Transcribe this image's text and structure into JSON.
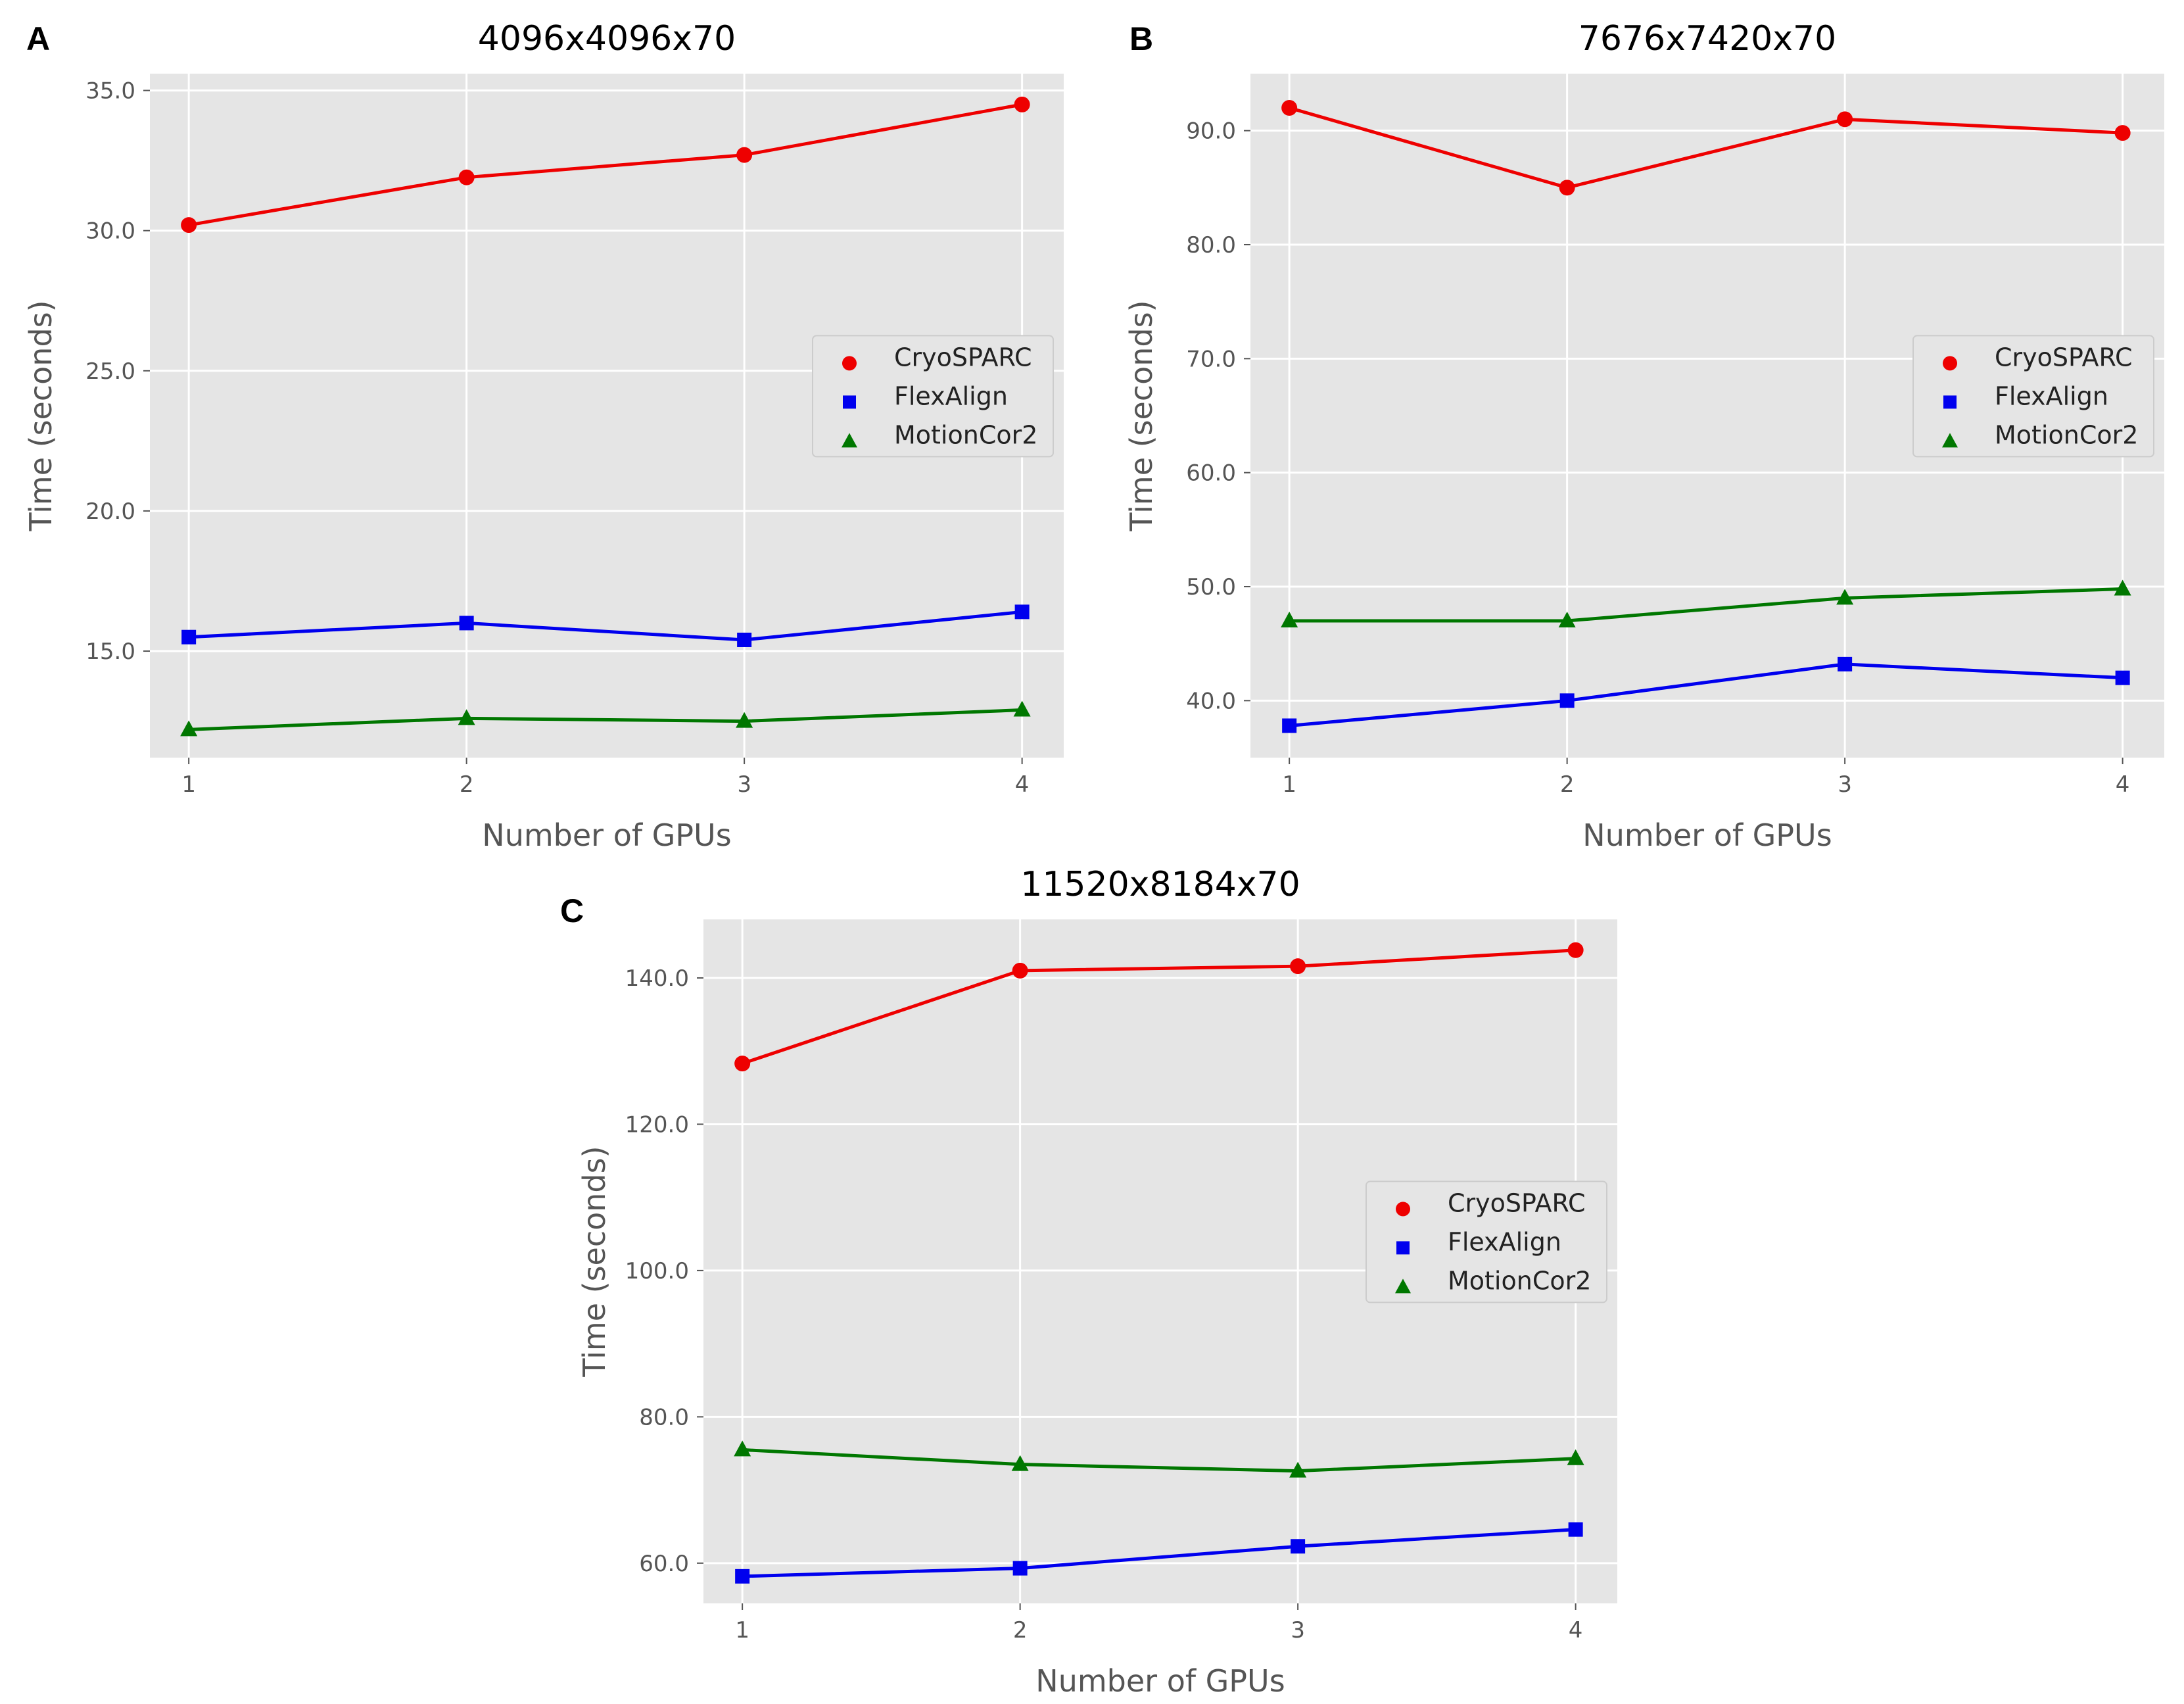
{
  "chart_data": [
    {
      "panel": "A",
      "type": "line",
      "title": "4096x4096x70",
      "xlabel": "Number of GPUs",
      "ylabel": "Time (seconds)",
      "categories": [
        1,
        2,
        3,
        4
      ],
      "x_tick_labels": [
        "1",
        "2",
        "3",
        "4"
      ],
      "xlim": [
        0.86,
        4.15
      ],
      "ylim": [
        11.2,
        35.6
      ],
      "y_ticks": [
        15.0,
        20.0,
        25.0,
        30.0,
        35.0
      ],
      "y_tick_labels": [
        "15.0",
        "20.0",
        "25.0",
        "30.0",
        "35.0"
      ],
      "grid": true,
      "legend_position": "center-right",
      "series": [
        {
          "name": "CryoSPARC",
          "color": "#ee0000",
          "marker": "circle",
          "values": [
            30.2,
            31.9,
            32.7,
            34.5
          ]
        },
        {
          "name": "FlexAlign",
          "color": "#0000ee",
          "marker": "square",
          "values": [
            15.5,
            16.0,
            15.4,
            16.4
          ]
        },
        {
          "name": "MotionCor2",
          "color": "#007700",
          "marker": "triangle",
          "values": [
            12.2,
            12.6,
            12.5,
            12.9
          ]
        }
      ]
    },
    {
      "panel": "B",
      "type": "line",
      "title": "7676x7420x70",
      "xlabel": "Number of GPUs",
      "ylabel": "Time (seconds)",
      "categories": [
        1,
        2,
        3,
        4
      ],
      "x_tick_labels": [
        "1",
        "2",
        "3",
        "4"
      ],
      "xlim": [
        0.86,
        4.15
      ],
      "ylim": [
        35.0,
        95.0
      ],
      "y_ticks": [
        40.0,
        50.0,
        60.0,
        70.0,
        80.0,
        90.0
      ],
      "y_tick_labels": [
        "40.0",
        "50.0",
        "60.0",
        "70.0",
        "80.0",
        "90.0"
      ],
      "grid": true,
      "legend_position": "center-right",
      "series": [
        {
          "name": "CryoSPARC",
          "color": "#ee0000",
          "marker": "circle",
          "values": [
            92.0,
            85.0,
            91.0,
            89.8
          ]
        },
        {
          "name": "FlexAlign",
          "color": "#0000ee",
          "marker": "square",
          "values": [
            37.8,
            40.0,
            43.2,
            42.0
          ]
        },
        {
          "name": "MotionCor2",
          "color": "#007700",
          "marker": "triangle",
          "values": [
            47.0,
            47.0,
            49.0,
            49.8
          ]
        }
      ]
    },
    {
      "panel": "C",
      "type": "line",
      "title": "11520x8184x70",
      "xlabel": "Number of GPUs",
      "ylabel": "Time (seconds)",
      "categories": [
        1,
        2,
        3,
        4
      ],
      "x_tick_labels": [
        "1",
        "2",
        "3",
        "4"
      ],
      "xlim": [
        0.86,
        4.15
      ],
      "ylim": [
        54.5,
        148.0
      ],
      "y_ticks": [
        60.0,
        80.0,
        100.0,
        120.0,
        140.0
      ],
      "y_tick_labels": [
        "60.0",
        "80.0",
        "100.0",
        "120.0",
        "140.0"
      ],
      "grid": true,
      "legend_position": "center-right",
      "series": [
        {
          "name": "CryoSPARC",
          "color": "#ee0000",
          "marker": "circle",
          "values": [
            128.3,
            141.0,
            141.6,
            143.8
          ]
        },
        {
          "name": "FlexAlign",
          "color": "#0000ee",
          "marker": "square",
          "values": [
            58.2,
            59.3,
            62.3,
            64.6
          ]
        },
        {
          "name": "MotionCor2",
          "color": "#007700",
          "marker": "triangle",
          "values": [
            75.5,
            73.5,
            72.6,
            74.3
          ]
        }
      ]
    }
  ],
  "colors": {
    "plot_background": "#e5e5e5",
    "grid": "#ffffff",
    "legend_background": "#e5e5e5",
    "legend_border": "#cccccc"
  }
}
